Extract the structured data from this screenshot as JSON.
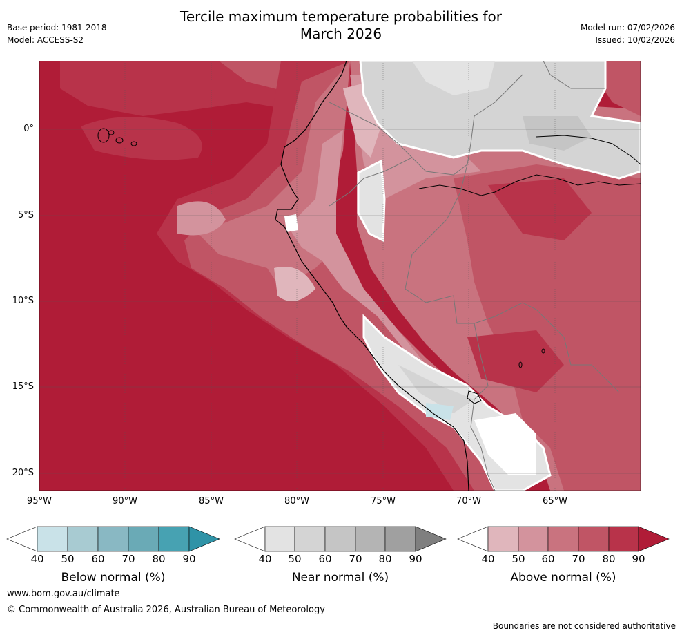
{
  "title_line1": "Tercile maximum temperature probabilities for",
  "title_line2": "March 2026",
  "base_period": "Base period: 1981-2018",
  "model": "Model: ACCESS-S2",
  "model_run": "Model run: 07/02/2026",
  "issued": "Issued: 10/02/2026",
  "map": {
    "lat_labels": [
      "0°",
      "5°S",
      "10°S",
      "15°S",
      "20°S"
    ],
    "lon_labels": [
      "95°W",
      "90°W",
      "85°W",
      "80°W",
      "75°W",
      "70°W",
      "65°W"
    ]
  },
  "colorbars": [
    {
      "name": "Below normal (%)",
      "ticks": [
        "40",
        "50",
        "60",
        "70",
        "80",
        "90"
      ],
      "colors": [
        "#ffffff",
        "#c9e2e8",
        "#a8cbd2",
        "#89b8c3",
        "#6aaab6",
        "#47a2b2",
        "#2f93a7"
      ]
    },
    {
      "name": "Near normal (%)",
      "ticks": [
        "40",
        "50",
        "60",
        "70",
        "80",
        "90"
      ],
      "colors": [
        "#ffffff",
        "#e3e3e3",
        "#d4d4d4",
        "#c5c5c5",
        "#b4b4b4",
        "#a0a0a0",
        "#7f7f7f"
      ]
    },
    {
      "name": "Above normal (%)",
      "ticks": [
        "40",
        "50",
        "60",
        "70",
        "80",
        "90"
      ],
      "colors": [
        "#ffffff",
        "#e0b6bc",
        "#d3939d",
        "#c9737f",
        "#c05565",
        "#b8334a",
        "#b01c37"
      ]
    }
  ],
  "footer": {
    "website": "www.bom.gov.au/climate",
    "copyright": "© Commonwealth of Australia 2026, Australian Bureau of Meteorology",
    "disclaimer": "Boundaries are not considered authoritative"
  }
}
